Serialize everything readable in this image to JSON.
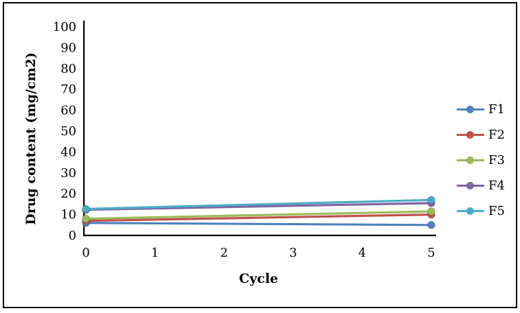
{
  "frame": {
    "background": "#ffffff",
    "border_color": "#000000"
  },
  "chart_data": {
    "type": "line",
    "title": "",
    "xlabel": "Cycle",
    "ylabel": "Drug content (mg/cm2)",
    "xlim": [
      0,
      5
    ],
    "ylim": [
      0,
      100
    ],
    "xticks": [
      "0",
      "1",
      "2",
      "3",
      "4",
      "5"
    ],
    "yticks": [
      "0",
      "10",
      "20",
      "30",
      "40",
      "50",
      "60",
      "70",
      "80",
      "90",
      "100"
    ],
    "grid": false,
    "legend_position": "right",
    "marker": "circle",
    "x": [
      0,
      5
    ],
    "series": [
      {
        "name": "F1",
        "color": "#4F81BD",
        "values": [
          6.0,
          5.0
        ]
      },
      {
        "name": "F2",
        "color": "#C0504D",
        "values": [
          7.0,
          10.0
        ]
      },
      {
        "name": "F3",
        "color": "#9BBB59",
        "values": [
          8.0,
          11.5
        ]
      },
      {
        "name": "F4",
        "color": "#8064A2",
        "values": [
          12.3,
          15.5
        ]
      },
      {
        "name": "F5",
        "color": "#4BACC6",
        "values": [
          12.7,
          17.0
        ]
      }
    ]
  }
}
